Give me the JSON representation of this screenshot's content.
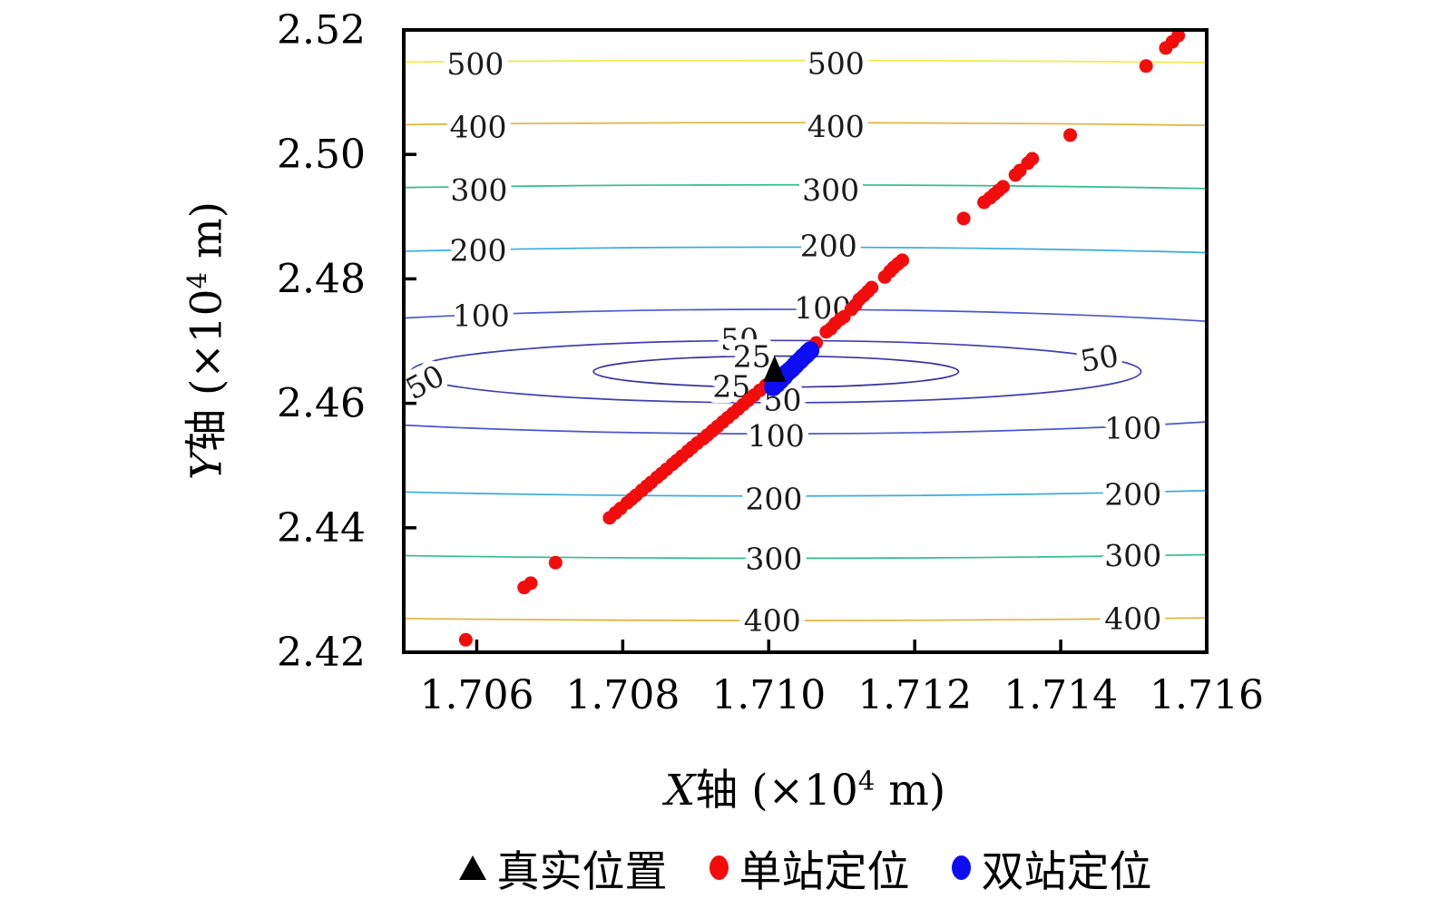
{
  "chart_data": {
    "type": "scatter",
    "title": "",
    "xlabel": "X轴 (×10^4 m)",
    "ylabel": "Y轴 (×10^4 m)",
    "x_axis": {
      "var": "X",
      "mid": "轴 (×10",
      "sup": "4",
      "suffix": " m)",
      "lim": [
        1.705,
        1.716
      ],
      "ticks": [
        1.706,
        1.708,
        1.71,
        1.712,
        1.714,
        1.716
      ],
      "tick_labels": [
        "1.706",
        "1.708",
        "1.710",
        "1.712",
        "1.714",
        "1.716"
      ]
    },
    "y_axis": {
      "var": "Y",
      "mid": "轴 (×10",
      "sup": "4",
      "suffix": " m)",
      "lim": [
        2.42,
        2.52
      ],
      "ticks": [
        2.42,
        2.44,
        2.46,
        2.48,
        2.5,
        2.52
      ],
      "tick_labels": [
        "2.42",
        "2.44",
        "2.46",
        "2.48",
        "2.50",
        "2.52"
      ]
    },
    "grid": false,
    "series": [
      {
        "name": "真实位置",
        "marker": "triangle",
        "color": "#000000",
        "points": [
          [
            1.71008,
            2.4655
          ]
        ]
      },
      {
        "name": "单站定位",
        "marker": "circle",
        "color": "#F20D0D",
        "size": 7.5,
        "points": [
          [
            1.70585,
            2.422
          ],
          [
            1.70665,
            2.4304
          ],
          [
            1.70674,
            2.4311
          ],
          [
            1.70708,
            2.4344
          ],
          [
            1.70782,
            2.4416
          ],
          [
            1.7079,
            2.4424
          ],
          [
            1.70797,
            2.4431
          ],
          [
            1.70806,
            2.444
          ],
          [
            1.70812,
            2.4446
          ],
          [
            1.70818,
            2.4452
          ],
          [
            1.70826,
            2.446
          ],
          [
            1.70833,
            2.4467
          ],
          [
            1.70839,
            2.4473
          ],
          [
            1.70847,
            2.4481
          ],
          [
            1.70853,
            2.4487
          ],
          [
            1.7086,
            2.4494
          ],
          [
            1.70868,
            2.4502
          ],
          [
            1.70874,
            2.4508
          ],
          [
            1.70881,
            2.4515
          ],
          [
            1.70889,
            2.4523
          ],
          [
            1.70895,
            2.4529
          ],
          [
            1.70902,
            2.4536
          ],
          [
            1.7091,
            2.4543
          ],
          [
            1.70916,
            2.4549
          ],
          [
            1.70923,
            2.4556
          ],
          [
            1.7093,
            2.4563
          ],
          [
            1.70937,
            2.457
          ],
          [
            1.70944,
            2.4577
          ],
          [
            1.70951,
            2.4584
          ],
          [
            1.70958,
            2.4591
          ],
          [
            1.70965,
            2.4598
          ],
          [
            1.70972,
            2.4605
          ],
          [
            1.7098,
            2.4613
          ],
          [
            1.70988,
            2.4621
          ],
          [
            1.70996,
            2.4629
          ],
          [
            1.71003,
            2.4636
          ],
          [
            1.71059,
            2.469
          ],
          [
            1.71065,
            2.4697
          ],
          [
            1.71079,
            2.4715
          ],
          [
            1.71085,
            2.472
          ],
          [
            1.71091,
            2.4728
          ],
          [
            1.71098,
            2.4735
          ],
          [
            1.71103,
            2.4739
          ],
          [
            1.71113,
            2.4751
          ],
          [
            1.71119,
            2.4758
          ],
          [
            1.71124,
            2.4767
          ],
          [
            1.7113,
            2.4773
          ],
          [
            1.71136,
            2.478
          ],
          [
            1.71141,
            2.4786
          ],
          [
            1.71159,
            2.4803
          ],
          [
            1.71166,
            2.4812
          ],
          [
            1.71171,
            2.4818
          ],
          [
            1.71177,
            2.4824
          ],
          [
            1.71183,
            2.483
          ],
          [
            1.71267,
            2.4897
          ],
          [
            1.71295,
            2.4923
          ],
          [
            1.71303,
            2.493
          ],
          [
            1.71309,
            2.4936
          ],
          [
            1.71315,
            2.4942
          ],
          [
            1.71321,
            2.4948
          ],
          [
            1.71338,
            2.4967
          ],
          [
            1.71344,
            2.4974
          ],
          [
            1.71355,
            2.4986
          ],
          [
            1.71361,
            2.4993
          ],
          [
            1.71413,
            2.5031
          ],
          [
            1.71517,
            2.5142
          ],
          [
            1.71544,
            2.5171
          ],
          [
            1.71553,
            2.5181
          ],
          [
            1.71561,
            2.5191
          ]
        ]
      },
      {
        "name": "双站定位",
        "marker": "circle",
        "color": "#0D0DF2",
        "size": 10,
        "points": [
          [
            1.71006,
            2.4626
          ],
          [
            1.71011,
            2.4631
          ],
          [
            1.71016,
            2.4637
          ],
          [
            1.71021,
            2.4643
          ],
          [
            1.71024,
            2.4648
          ],
          [
            1.71028,
            2.4652
          ],
          [
            1.71032,
            2.4656
          ],
          [
            1.71036,
            2.4661
          ],
          [
            1.71039,
            2.4665
          ],
          [
            1.71043,
            2.4669
          ],
          [
            1.71047,
            2.4674
          ],
          [
            1.71051,
            2.4678
          ],
          [
            1.71054,
            2.4682
          ],
          [
            1.71057,
            2.4685
          ]
        ]
      }
    ],
    "contours": {
      "center": [
        1.7101,
        2.4651
      ],
      "note": "circular error contours; level value = radius in meters, axes in 10^4 m",
      "levels": [
        {
          "value": 25,
          "radius": 0.0025,
          "color": "#37339B"
        },
        {
          "value": 50,
          "radius": 0.005,
          "color": "#3D3FB1"
        },
        {
          "value": 100,
          "radius": 0.01,
          "color": "#4A57CC"
        },
        {
          "value": 200,
          "radius": 0.02,
          "color": "#3AABDE"
        },
        {
          "value": 300,
          "radius": 0.03,
          "color": "#2FBE8C"
        },
        {
          "value": 400,
          "radius": 0.04,
          "color": "#E1B33D"
        },
        {
          "value": 500,
          "radius": 0.05,
          "color": "#F0EB4B"
        }
      ],
      "labels": [
        {
          "t": "500",
          "x": 1.70598,
          "y": 2.5145,
          "r": 0
        },
        {
          "t": "500",
          "x": 1.71092,
          "y": 2.5146,
          "r": 0
        },
        {
          "t": "400",
          "x": 1.70602,
          "y": 2.5044,
          "r": 0
        },
        {
          "t": "400",
          "x": 1.71092,
          "y": 2.5045,
          "r": 0
        },
        {
          "t": "300",
          "x": 1.70603,
          "y": 2.4943,
          "r": 0
        },
        {
          "t": "300",
          "x": 1.71085,
          "y": 2.4943,
          "r": 0
        },
        {
          "t": "200",
          "x": 1.70602,
          "y": 2.4846,
          "r": 0
        },
        {
          "t": "200",
          "x": 1.71082,
          "y": 2.4853,
          "r": 0
        },
        {
          "t": "100",
          "x": 1.70606,
          "y": 2.4741,
          "r": 0
        },
        {
          "t": "100",
          "x": 1.71074,
          "y": 2.4753,
          "r": 0
        },
        {
          "t": "50",
          "x": 1.7096,
          "y": 2.4703,
          "r": 0
        },
        {
          "t": "25",
          "x": 1.70977,
          "y": 2.4675,
          "r": 0
        },
        {
          "t": "25",
          "x": 1.70949,
          "y": 2.4627,
          "r": 0
        },
        {
          "t": "50",
          "x": 1.70529,
          "y": 2.4634,
          "r": -28
        },
        {
          "t": "50",
          "x": 1.71453,
          "y": 2.4672,
          "r": -10
        },
        {
          "t": "50",
          "x": 1.71019,
          "y": 2.4605,
          "r": 0
        },
        {
          "t": "100",
          "x": 1.7101,
          "y": 2.4548,
          "r": 0
        },
        {
          "t": "100",
          "x": 1.71499,
          "y": 2.456,
          "r": 0
        },
        {
          "t": "200",
          "x": 1.71007,
          "y": 2.4446,
          "r": 0
        },
        {
          "t": "200",
          "x": 1.71499,
          "y": 2.4454,
          "r": 0
        },
        {
          "t": "300",
          "x": 1.71007,
          "y": 2.435,
          "r": 0
        },
        {
          "t": "300",
          "x": 1.71499,
          "y": 2.4355,
          "r": 0
        },
        {
          "t": "400",
          "x": 1.71005,
          "y": 2.4251,
          "r": 0
        },
        {
          "t": "400",
          "x": 1.71499,
          "y": 2.4254,
          "r": 0
        }
      ]
    },
    "legend": {
      "position": "bottom",
      "items": [
        {
          "label": "真实位置",
          "marker": "triangle",
          "color": "#000000"
        },
        {
          "label": "单站定位",
          "marker": "dot",
          "color": "#F20D0D"
        },
        {
          "label": "双站定位",
          "marker": "dot",
          "color": "#0D0DF2"
        }
      ]
    }
  }
}
